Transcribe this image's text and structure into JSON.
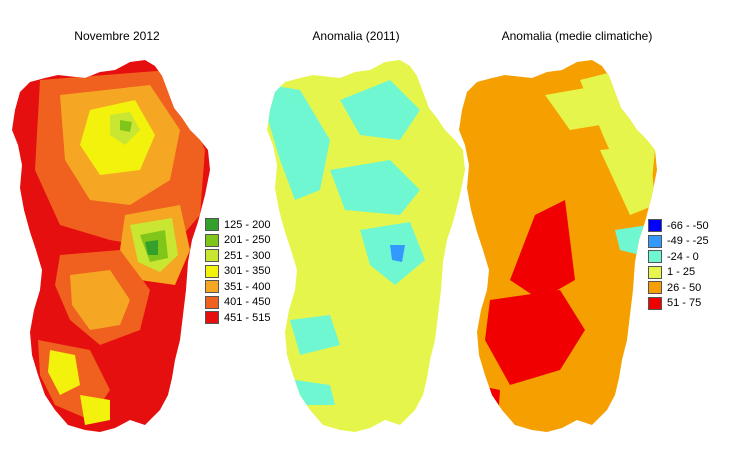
{
  "panels": [
    {
      "title": "Novembre 2012",
      "legend": [
        {
          "label": "125 - 200",
          "color": "#33a02c"
        },
        {
          "label": "201 - 250",
          "color": "#7fc51a"
        },
        {
          "label": "251 - 300",
          "color": "#c8e632"
        },
        {
          "label": "301 - 350",
          "color": "#f2f20d"
        },
        {
          "label": "351 - 400",
          "color": "#f5a623"
        },
        {
          "label": "401 - 450",
          "color": "#f0601e"
        },
        {
          "label": "451 - 515",
          "color": "#e60f0f"
        }
      ]
    },
    {
      "title": "Anomalia (2011)"
    },
    {
      "title": "Anomalia (medie climatiche)",
      "legend": [
        {
          "label": "-66 - -50",
          "color": "#0000ff"
        },
        {
          "label": "-49 - -25",
          "color": "#3399ff"
        },
        {
          "label": "-24 - 0",
          "color": "#6ff7d2"
        },
        {
          "label": "1 - 25",
          "color": "#e6f54b"
        },
        {
          "label": "26 - 50",
          "color": "#f5a000"
        },
        {
          "label": "51 - 75",
          "color": "#f00000"
        }
      ]
    }
  ]
}
